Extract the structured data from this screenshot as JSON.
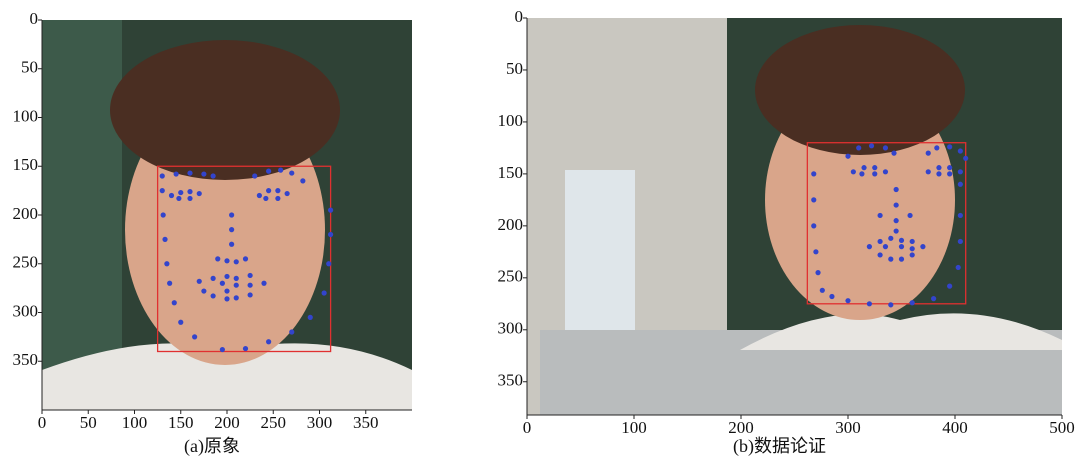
{
  "chart_data": [
    {
      "type": "scatter",
      "caption": "(a)原象",
      "color": "#3344cc",
      "box_color": "#e03030",
      "xlim": [
        0,
        400
      ],
      "ylim": [
        0,
        400
      ],
      "xticks": [
        0,
        50,
        100,
        150,
        200,
        250,
        300,
        350
      ],
      "yticks": [
        0,
        50,
        100,
        150,
        200,
        250,
        300,
        350
      ],
      "box": {
        "x": [
          125,
          312
        ],
        "y": [
          150,
          340
        ]
      },
      "x": [
        130,
        131,
        133,
        135,
        138,
        143,
        150,
        165,
        195,
        220,
        245,
        270,
        290,
        305,
        310,
        312,
        312,
        130,
        145,
        160,
        175,
        185,
        230,
        245,
        258,
        270,
        282,
        140,
        150,
        160,
        170,
        160,
        148,
        235,
        245,
        255,
        265,
        255,
        242,
        205,
        205,
        205,
        190,
        200,
        210,
        220,
        170,
        185,
        200,
        210,
        225,
        240,
        225,
        210,
        200,
        185,
        175,
        195,
        210,
        225,
        200
      ],
      "y": [
        175,
        200,
        225,
        250,
        270,
        290,
        310,
        325,
        338,
        337,
        330,
        320,
        305,
        280,
        250,
        220,
        195,
        160,
        158,
        157,
        158,
        160,
        160,
        155,
        154,
        157,
        165,
        180,
        177,
        176,
        178,
        183,
        183,
        180,
        175,
        175,
        178,
        183,
        183,
        200,
        215,
        230,
        245,
        247,
        248,
        245,
        268,
        265,
        263,
        265,
        262,
        270,
        282,
        285,
        286,
        283,
        278,
        270,
        272,
        272,
        278
      ]
    },
    {
      "type": "scatter",
      "caption": "(b)数据论证",
      "color": "#3344cc",
      "box_color": "#e03030",
      "xlim": [
        0,
        500
      ],
      "ylim": [
        0,
        382
      ],
      "xticks": [
        0,
        100,
        200,
        300,
        400,
        500
      ],
      "yticks": [
        0,
        50,
        100,
        150,
        200,
        250,
        300,
        350
      ],
      "box": {
        "x": [
          262,
          410
        ],
        "y": [
          120,
          275
        ]
      },
      "x": [
        268,
        268,
        268,
        270,
        272,
        276,
        285,
        300,
        320,
        340,
        360,
        380,
        395,
        403,
        405,
        405,
        405,
        300,
        310,
        322,
        335,
        343,
        375,
        383,
        395,
        405,
        410,
        305,
        315,
        325,
        335,
        325,
        313,
        375,
        385,
        395,
        405,
        395,
        385,
        345,
        345,
        330,
        345,
        358,
        345,
        320,
        330,
        340,
        350,
        360,
        370,
        360,
        350,
        340,
        330,
        335,
        350,
        360
      ],
      "y": [
        150,
        175,
        200,
        225,
        245,
        262,
        268,
        272,
        275,
        276,
        274,
        270,
        258,
        240,
        215,
        190,
        160,
        133,
        125,
        123,
        125,
        130,
        130,
        125,
        124,
        128,
        135,
        148,
        144,
        144,
        148,
        150,
        150,
        148,
        144,
        144,
        148,
        150,
        150,
        165,
        180,
        190,
        195,
        190,
        205,
        220,
        215,
        212,
        214,
        215,
        220,
        228,
        232,
        232,
        228,
        220,
        220,
        222
      ]
    }
  ]
}
